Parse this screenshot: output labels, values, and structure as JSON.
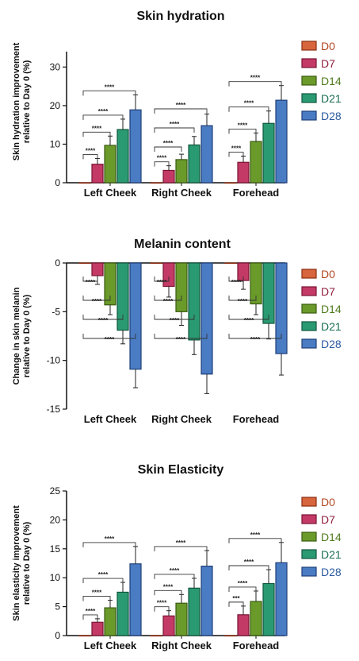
{
  "legend": {
    "items": [
      {
        "label": "D0",
        "fill": "#d7653e",
        "stroke": "#8b2e12",
        "text": "#b34722"
      },
      {
        "label": "D7",
        "fill": "#c43a66",
        "stroke": "#7a1633",
        "text": "#8f1f3c"
      },
      {
        "label": "D14",
        "fill": "#6a9a2a",
        "stroke": "#3c5c12",
        "text": "#4f7a1c"
      },
      {
        "label": "D21",
        "fill": "#2a9a72",
        "stroke": "#12583f",
        "text": "#1a6e50"
      },
      {
        "label": "D28",
        "fill": "#4a7cc4",
        "stroke": "#1e3f78",
        "text": "#2c5aa0"
      }
    ]
  },
  "chart_data": [
    {
      "type": "bar",
      "title": "Skin hydration",
      "ylabel": [
        "Skin hydration improvement",
        "relative to Day 0 (%)"
      ],
      "categories": [
        "Left Cheek",
        "Right Cheek",
        "Forehead"
      ],
      "ylim": [
        0,
        34
      ],
      "yticks": [
        0,
        10,
        20,
        30
      ],
      "series": [
        {
          "name": "D0",
          "values": [
            0,
            0,
            0
          ],
          "errors": [
            0,
            0,
            0
          ]
        },
        {
          "name": "D7",
          "values": [
            4.8,
            3.2,
            5.3
          ],
          "errors": [
            1.5,
            1.2,
            1.6
          ]
        },
        {
          "name": "D14",
          "values": [
            9.7,
            6.0,
            10.7
          ],
          "errors": [
            2.4,
            1.4,
            2.2
          ]
        },
        {
          "name": "D21",
          "values": [
            13.8,
            9.8,
            15.4
          ],
          "errors": [
            2.7,
            2.2,
            3.2
          ]
        },
        {
          "name": "D28",
          "values": [
            18.9,
            14.8,
            21.4
          ],
          "errors": [
            3.9,
            3.0,
            3.8
          ]
        }
      ],
      "significance": [
        {
          "group": 0,
          "bracket": [
            "D0",
            "D7"
          ],
          "label": "****"
        },
        {
          "group": 0,
          "bracket": [
            "D0",
            "D14"
          ],
          "label": "****"
        },
        {
          "group": 0,
          "bracket": [
            "D0",
            "D21"
          ],
          "label": "****"
        },
        {
          "group": 0,
          "bracket": [
            "D0",
            "D28"
          ],
          "label": "****"
        },
        {
          "group": 1,
          "bracket": [
            "D0",
            "D7"
          ],
          "label": "****"
        },
        {
          "group": 1,
          "bracket": [
            "D0",
            "D14"
          ],
          "label": "****"
        },
        {
          "group": 1,
          "bracket": [
            "D0",
            "D21"
          ],
          "label": "****"
        },
        {
          "group": 1,
          "bracket": [
            "D0",
            "D28"
          ],
          "label": "****"
        },
        {
          "group": 2,
          "bracket": [
            "D0",
            "D7"
          ],
          "label": "****"
        },
        {
          "group": 2,
          "bracket": [
            "D0",
            "D14"
          ],
          "label": "****"
        },
        {
          "group": 2,
          "bracket": [
            "D0",
            "D21"
          ],
          "label": "****"
        },
        {
          "group": 2,
          "bracket": [
            "D0",
            "D28"
          ],
          "label": "****"
        }
      ]
    },
    {
      "type": "bar",
      "title": "Melanin content",
      "ylabel": [
        "Change in skin melanin",
        "relative to Day 0 (%)"
      ],
      "categories": [
        "Left Cheek",
        "Right Cheek",
        "Forehead"
      ],
      "ylim": [
        -15,
        0
      ],
      "yticks": [
        0,
        -5,
        -10,
        -15
      ],
      "series": [
        {
          "name": "D0",
          "values": [
            0,
            0,
            0
          ],
          "errors": [
            0,
            0,
            0
          ]
        },
        {
          "name": "D7",
          "values": [
            -1.3,
            -2.4,
            -1.8
          ],
          "errors": [
            0.9,
            1.1,
            0.9
          ]
        },
        {
          "name": "D14",
          "values": [
            -4.3,
            -5.0,
            -4.2
          ],
          "errors": [
            1.0,
            1.4,
            1.1
          ]
        },
        {
          "name": "D21",
          "values": [
            -6.9,
            -7.9,
            -6.2
          ],
          "errors": [
            1.4,
            1.5,
            1.6
          ]
        },
        {
          "name": "D28",
          "values": [
            -10.9,
            -11.4,
            -9.3
          ],
          "errors": [
            1.9,
            2.0,
            2.2
          ]
        }
      ],
      "significance": [
        {
          "group": 0,
          "bracket": [
            "D0",
            "D7"
          ],
          "label": "****"
        },
        {
          "group": 0,
          "bracket": [
            "D0",
            "D14"
          ],
          "label": "****"
        },
        {
          "group": 0,
          "bracket": [
            "D0",
            "D21"
          ],
          "label": "****"
        },
        {
          "group": 0,
          "bracket": [
            "D0",
            "D28"
          ],
          "label": "****"
        },
        {
          "group": 1,
          "bracket": [
            "D0",
            "D7"
          ],
          "label": "****"
        },
        {
          "group": 1,
          "bracket": [
            "D0",
            "D14"
          ],
          "label": "****"
        },
        {
          "group": 1,
          "bracket": [
            "D0",
            "D21"
          ],
          "label": "****"
        },
        {
          "group": 1,
          "bracket": [
            "D0",
            "D28"
          ],
          "label": "****"
        },
        {
          "group": 2,
          "bracket": [
            "D0",
            "D7"
          ],
          "label": "****"
        },
        {
          "group": 2,
          "bracket": [
            "D0",
            "D14"
          ],
          "label": "****"
        },
        {
          "group": 2,
          "bracket": [
            "D0",
            "D21"
          ],
          "label": "****"
        },
        {
          "group": 2,
          "bracket": [
            "D0",
            "D28"
          ],
          "label": "****"
        }
      ]
    },
    {
      "type": "bar",
      "title": "Skin Elasticity",
      "ylabel": [
        "Skin elasticity improvement",
        "relative to Day 0 (%)"
      ],
      "categories": [
        "Left Cheek",
        "Right Cheek",
        "Forehead"
      ],
      "ylim": [
        0,
        25
      ],
      "yticks": [
        0,
        5,
        10,
        15,
        20,
        25
      ],
      "series": [
        {
          "name": "D0",
          "values": [
            0,
            0,
            0
          ],
          "errors": [
            0,
            0,
            0
          ]
        },
        {
          "name": "D7",
          "values": [
            2.3,
            3.4,
            3.6
          ],
          "errors": [
            0.6,
            0.9,
            1.5
          ]
        },
        {
          "name": "D14",
          "values": [
            4.8,
            5.6,
            5.9
          ],
          "errors": [
            1.3,
            1.5,
            1.8
          ]
        },
        {
          "name": "D21",
          "values": [
            7.5,
            8.2,
            9.0
          ],
          "errors": [
            1.7,
            1.7,
            2.4
          ]
        },
        {
          "name": "D28",
          "values": [
            12.4,
            12.0,
            12.6
          ],
          "errors": [
            3.0,
            2.7,
            3.5
          ]
        }
      ],
      "significance": [
        {
          "group": 0,
          "bracket": [
            "D0",
            "D7"
          ],
          "label": "****"
        },
        {
          "group": 0,
          "bracket": [
            "D0",
            "D14"
          ],
          "label": "****"
        },
        {
          "group": 0,
          "bracket": [
            "D0",
            "D21"
          ],
          "label": "****"
        },
        {
          "group": 0,
          "bracket": [
            "D0",
            "D28"
          ],
          "label": "****"
        },
        {
          "group": 1,
          "bracket": [
            "D0",
            "D7"
          ],
          "label": "****"
        },
        {
          "group": 1,
          "bracket": [
            "D0",
            "D14"
          ],
          "label": "****"
        },
        {
          "group": 1,
          "bracket": [
            "D0",
            "D21"
          ],
          "label": "****"
        },
        {
          "group": 1,
          "bracket": [
            "D0",
            "D28"
          ],
          "label": "****"
        },
        {
          "group": 2,
          "bracket": [
            "D0",
            "D7"
          ],
          "label": "***"
        },
        {
          "group": 2,
          "bracket": [
            "D0",
            "D14"
          ],
          "label": "****"
        },
        {
          "group": 2,
          "bracket": [
            "D0",
            "D21"
          ],
          "label": "****"
        },
        {
          "group": 2,
          "bracket": [
            "D0",
            "D28"
          ],
          "label": "****"
        }
      ]
    }
  ]
}
